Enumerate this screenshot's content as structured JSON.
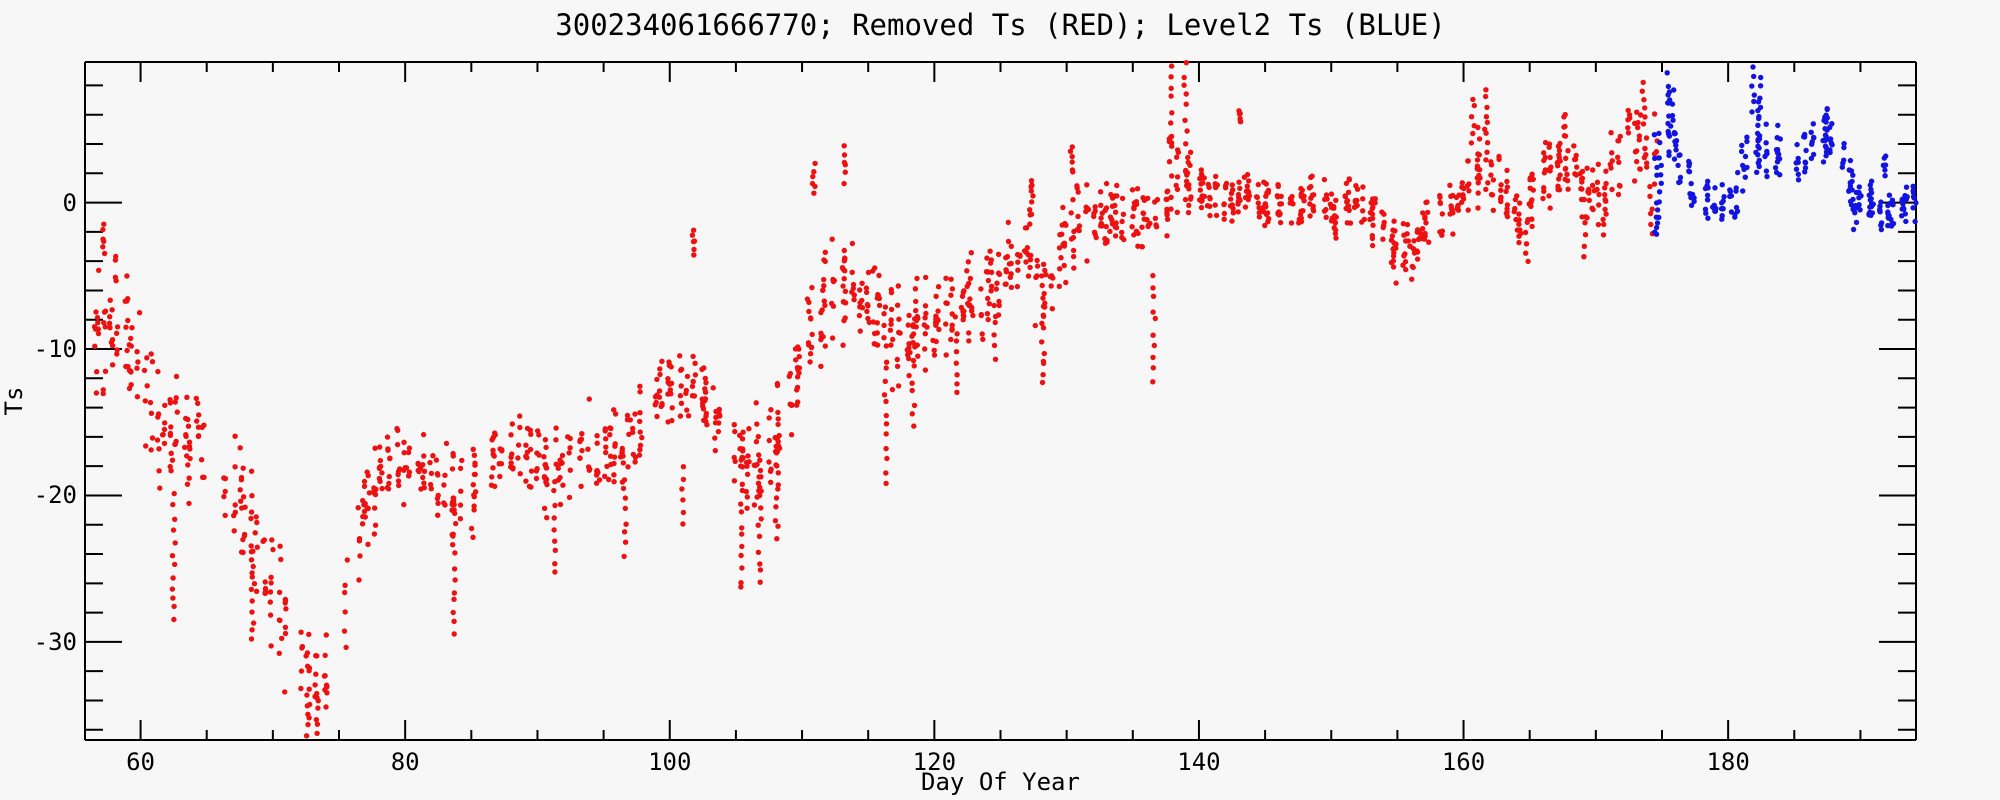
{
  "figure": {
    "background": "#f7f7f7",
    "axis_color": "#000000"
  },
  "chart_data": {
    "type": "scatter",
    "title": "300234061666770; Removed Ts (RED); Level2 Ts (BLUE)",
    "xlabel": "Day Of Year",
    "ylabel": "Ts",
    "xlim": [
      55.8,
      194.2
    ],
    "ylim": [
      -36.7,
      9.6
    ],
    "x_major_ticks": [
      60,
      80,
      100,
      120,
      140,
      160,
      180
    ],
    "x_minor_step": 5,
    "y_major_ticks": [
      0,
      -10,
      -20,
      -30
    ],
    "y_minor_step": 2,
    "grid": false,
    "legend_position": "in-title",
    "marker": "filled-dot",
    "series": [
      {
        "name": "Removed Ts",
        "color": "#ee1111",
        "day_range": [
          55.9,
          174.4
        ],
        "points_per_day": 14,
        "trend_anchors": [
          [
            55.8,
            -10.5,
            4.5
          ],
          [
            57,
            -8.5,
            5.5
          ],
          [
            58.5,
            -7,
            5
          ],
          [
            59.8,
            -11,
            4
          ],
          [
            61.5,
            -16,
            5
          ],
          [
            63,
            -15.5,
            5
          ],
          [
            64.5,
            -17,
            3.5
          ],
          [
            66,
            -18.5,
            3.5
          ],
          [
            68,
            -21.5,
            4
          ],
          [
            70,
            -27,
            4.5
          ],
          [
            71.5,
            -30.5,
            4
          ],
          [
            73,
            -33,
            3.3
          ],
          [
            74.3,
            -31.5,
            3.3
          ],
          [
            75.8,
            -26,
            4
          ],
          [
            77.3,
            -20,
            3.5
          ],
          [
            79,
            -18,
            2.8
          ],
          [
            81,
            -18.2,
            2.8
          ],
          [
            83,
            -19.5,
            3
          ],
          [
            84.2,
            -21,
            4
          ],
          [
            85.5,
            -18.5,
            2.8
          ],
          [
            87,
            -17.2,
            2.8
          ],
          [
            89,
            -17.5,
            3
          ],
          [
            91,
            -18.3,
            3.2
          ],
          [
            92.5,
            -17,
            3
          ],
          [
            94,
            -16.3,
            3.2
          ],
          [
            96,
            -17.5,
            3.5
          ],
          [
            97.5,
            -15.5,
            3.5
          ],
          [
            99,
            -12.8,
            2.5
          ],
          [
            100.5,
            -12.5,
            2.5
          ],
          [
            102,
            -13.5,
            3
          ],
          [
            104,
            -15.5,
            3.5
          ],
          [
            105.5,
            -17.5,
            4
          ],
          [
            107,
            -18,
            4.5
          ],
          [
            108.5,
            -15.5,
            4
          ],
          [
            110,
            -10.5,
            4
          ],
          [
            111.2,
            -7.5,
            4
          ],
          [
            112.5,
            -6.5,
            4
          ],
          [
            114,
            -6,
            4
          ],
          [
            115.5,
            -8.5,
            4.5
          ],
          [
            117,
            -9.5,
            4.5
          ],
          [
            118.5,
            -9.5,
            4
          ],
          [
            120,
            -8,
            3.5
          ],
          [
            121.5,
            -7.5,
            3.5
          ],
          [
            123,
            -6.2,
            3.2
          ],
          [
            124.5,
            -5.8,
            3.2
          ],
          [
            126,
            -4,
            3
          ],
          [
            127.4,
            -3,
            3
          ],
          [
            128.4,
            -7,
            4
          ],
          [
            129.6,
            -3.5,
            3
          ],
          [
            130.8,
            -0.8,
            2.8
          ],
          [
            132,
            -1.5,
            2.5
          ],
          [
            133.5,
            -1,
            2.3
          ],
          [
            135,
            -0.6,
            2.3
          ],
          [
            136.5,
            -1.8,
            2.6
          ],
          [
            138,
            1.8,
            3
          ],
          [
            139.5,
            1.4,
            2.2
          ],
          [
            141,
            0.5,
            1.9
          ],
          [
            142.5,
            0.1,
            1.8
          ],
          [
            144,
            0.2,
            1.8
          ],
          [
            145.5,
            -0.2,
            1.8
          ],
          [
            147,
            -0.3,
            1.7
          ],
          [
            148.5,
            0.4,
            1.8
          ],
          [
            150,
            -0.4,
            1.9
          ],
          [
            151.5,
            0.3,
            1.7
          ],
          [
            153,
            -0.6,
            1.9
          ],
          [
            154.5,
            -2.4,
            2.4
          ],
          [
            156,
            -2.8,
            2.2
          ],
          [
            157.5,
            -1,
            2
          ],
          [
            159,
            -0.4,
            1.9
          ],
          [
            160.5,
            1.2,
            2.6
          ],
          [
            161.8,
            3,
            3
          ],
          [
            163,
            0.6,
            2.3
          ],
          [
            164.5,
            -0.8,
            2.5
          ],
          [
            166,
            1.8,
            2.3
          ],
          [
            167.5,
            2.9,
            2.3
          ],
          [
            169,
            1.3,
            2.6
          ],
          [
            170.5,
            0.4,
            2.6
          ],
          [
            172,
            3.2,
            2.6
          ],
          [
            173.5,
            4.6,
            3
          ],
          [
            174.4,
            2.5,
            3.5
          ]
        ],
        "streaks": [
          [
            57.2,
            -3.5,
            -1.5
          ],
          [
            62.5,
            -20,
            -28.5
          ],
          [
            68.5,
            -24,
            -30
          ],
          [
            73.3,
            -33,
            -36.5
          ],
          [
            83.7,
            -21,
            -29.5
          ],
          [
            91.3,
            -19,
            -25.3
          ],
          [
            96.6,
            -18,
            -24.2
          ],
          [
            101.0,
            -18,
            -22
          ],
          [
            101.8,
            -3.5,
            -2
          ],
          [
            105.4,
            -16,
            -26.5
          ],
          [
            106.8,
            -17,
            -26
          ],
          [
            108.1,
            -17,
            -23
          ],
          [
            110.9,
            0.5,
            2.5
          ],
          [
            113.3,
            1.5,
            3.7
          ],
          [
            116.3,
            -7,
            -19
          ],
          [
            118.4,
            -9,
            -15.2
          ],
          [
            121.7,
            -8,
            -13
          ],
          [
            124.6,
            -7,
            -10.5
          ],
          [
            127.4,
            0,
            1.6
          ],
          [
            128.2,
            -5,
            -12.5
          ],
          [
            130.4,
            2,
            3.6
          ],
          [
            136.6,
            -5,
            -12
          ],
          [
            137.9,
            4,
            9.3
          ],
          [
            139.0,
            5,
            9.5
          ],
          [
            143.1,
            5.5,
            6.1
          ],
          [
            150.3,
            -1,
            -2.6
          ],
          [
            154.8,
            -2,
            -5.3
          ],
          [
            156.2,
            -2.5,
            -5.2
          ],
          [
            160.7,
            4,
            7.0
          ],
          [
            161.7,
            5,
            7.6
          ],
          [
            164.8,
            -1,
            -3.9
          ],
          [
            167.6,
            4.5,
            6.0
          ],
          [
            169.2,
            0,
            -3.8
          ],
          [
            170.6,
            0.5,
            -2.2
          ],
          [
            172.5,
            5,
            6.5
          ],
          [
            173.6,
            5.5,
            8.2
          ],
          [
            174.2,
            1,
            -2.3
          ]
        ]
      },
      {
        "name": "Level2 Ts",
        "color": "#1414e0",
        "day_range": [
          174.5,
          194.1
        ],
        "points_per_day": 14,
        "trend_anchors": [
          [
            174.6,
            1.8,
            3.5
          ],
          [
            175.5,
            5,
            3.2
          ],
          [
            176.5,
            3,
            2.4
          ],
          [
            177.6,
            0.8,
            1.8
          ],
          [
            179,
            -0.2,
            1.4
          ],
          [
            180.3,
            0.3,
            1.7
          ],
          [
            181.3,
            3,
            3
          ],
          [
            182.2,
            4.8,
            2.8
          ],
          [
            183.2,
            4,
            2.4
          ],
          [
            184.5,
            2.6,
            1.5
          ],
          [
            186,
            3.4,
            1.8
          ],
          [
            187.4,
            4.8,
            1.8
          ],
          [
            188.5,
            3.4,
            1.6
          ],
          [
            189.6,
            0.8,
            2.2
          ],
          [
            190.8,
            -0.4,
            1.4
          ],
          [
            192.3,
            -0.7,
            1.2
          ],
          [
            193.5,
            -0.2,
            1.3
          ],
          [
            194.1,
            0.2,
            1.3
          ]
        ],
        "streaks": [
          [
            174.7,
            0,
            -2.4
          ],
          [
            175.4,
            5,
            8.9
          ],
          [
            175.9,
            4,
            7.6
          ],
          [
            181.9,
            6,
            9.5
          ],
          [
            182.4,
            5.5,
            8.6
          ],
          [
            187.4,
            5.5,
            6.6
          ],
          [
            189.6,
            0.5,
            -1.9
          ],
          [
            191.8,
            2,
            3.2
          ]
        ]
      }
    ]
  }
}
